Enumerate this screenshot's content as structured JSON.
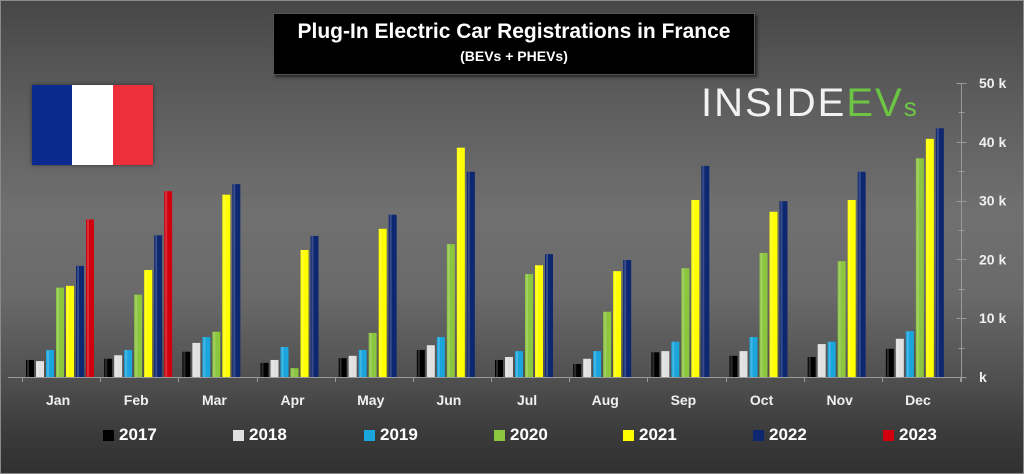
{
  "logo": {
    "part1": "INSIDE",
    "part2": "EV",
    "part3": "s"
  },
  "flag": {
    "colors": [
      "#0b2a8f",
      "#ffffff",
      "#ee2e3a"
    ]
  },
  "chart_data": {
    "type": "bar",
    "title": "Plug-In Electric Car Registrations in France",
    "subtitle": "(BEVs + PHEVs)",
    "xlabel": "",
    "ylabel": "",
    "ylim": [
      0,
      50
    ],
    "y_ticks": [
      0,
      10,
      20,
      30,
      40,
      50
    ],
    "y_tick_labels": [
      "k",
      "10 k",
      "20 k",
      "30 k",
      "40 k",
      "50 k"
    ],
    "y_axis_position": "right",
    "grid": false,
    "legend_position": "bottom",
    "categories": [
      "Jan",
      "Feb",
      "Mar",
      "Apr",
      "May",
      "Jun",
      "Jul",
      "Aug",
      "Sep",
      "Oct",
      "Nov",
      "Dec"
    ],
    "units": "thousands",
    "series": [
      {
        "name": "2017",
        "color": "#000000",
        "values": [
          2.9,
          3.1,
          4.3,
          2.4,
          3.2,
          4.6,
          2.9,
          2.2,
          4.2,
          3.6,
          3.4,
          4.8
        ]
      },
      {
        "name": "2018",
        "color": "#e0e0e0",
        "values": [
          2.7,
          3.7,
          5.8,
          2.9,
          3.6,
          5.4,
          3.4,
          3.1,
          4.4,
          4.4,
          5.6,
          6.5
        ]
      },
      {
        "name": "2019",
        "color": "#1aa6dd",
        "values": [
          4.6,
          4.6,
          6.8,
          5.1,
          4.6,
          6.8,
          4.4,
          4.4,
          6.0,
          6.8,
          6.0,
          7.8
        ]
      },
      {
        "name": "2020",
        "color": "#8cc63f",
        "values": [
          15.2,
          14.0,
          7.7,
          1.5,
          7.5,
          22.6,
          17.5,
          11.1,
          18.5,
          21.1,
          19.7,
          37.2
        ]
      },
      {
        "name": "2021",
        "color": "#ffff00",
        "values": [
          15.5,
          18.2,
          31.0,
          21.6,
          25.2,
          39.0,
          19.0,
          18.0,
          30.1,
          28.1,
          30.1,
          40.5
        ]
      },
      {
        "name": "2022",
        "color": "#0d2770",
        "values": [
          18.9,
          24.1,
          32.8,
          24.0,
          27.6,
          34.9,
          20.9,
          19.9,
          35.9,
          29.9,
          34.9,
          42.3
        ]
      },
      {
        "name": "2023",
        "color": "#d0000f",
        "values": [
          26.8,
          31.6,
          null,
          null,
          null,
          null,
          null,
          null,
          null,
          null,
          null,
          null
        ]
      }
    ]
  }
}
